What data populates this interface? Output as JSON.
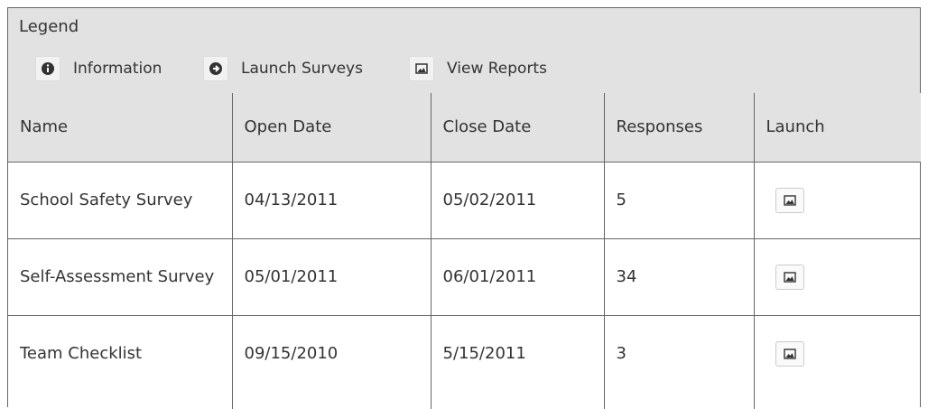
{
  "legend": {
    "title": "Legend",
    "items": [
      "Information",
      "Launch Surveys",
      "View Reports"
    ]
  },
  "table": {
    "columns": [
      "Name",
      "Open Date",
      "Close Date",
      "Responses",
      "Launch"
    ],
    "rows": [
      [
        "School Safety Survey",
        "04/13/2011",
        "05/02/2011",
        "5"
      ],
      [
        "Self-Assessment Survey",
        "05/01/2011",
        "06/01/2011",
        "34"
      ],
      [
        "Team Checklist",
        "09/15/2010",
        "5/15/2011",
        "3"
      ]
    ]
  }
}
